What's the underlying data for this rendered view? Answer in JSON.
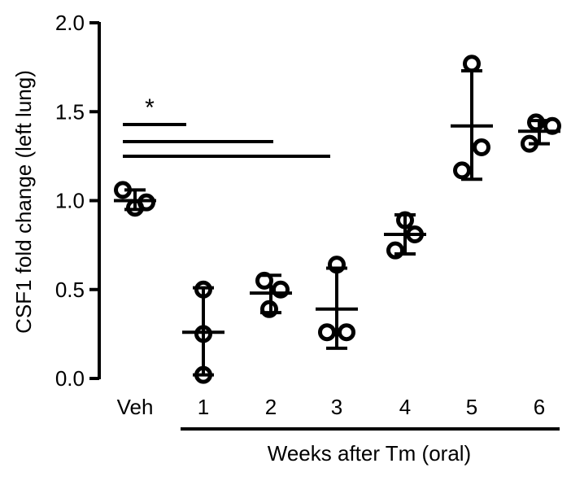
{
  "chart_data": {
    "type": "scatter",
    "ylabel": "CSF1 fold change (left lung)",
    "xlabel": "Weeks after Tm (oral)",
    "ylim": [
      0.0,
      2.0
    ],
    "yticks": [
      "0.0",
      "0.5",
      "1.0",
      "1.5",
      "2.0"
    ],
    "categories": [
      "Veh",
      "1",
      "2",
      "3",
      "4",
      "5",
      "6"
    ],
    "groups": [
      {
        "label": "Veh",
        "points": [
          1.06,
          0.96,
          0.99
        ],
        "mean": 1.0,
        "sd_upper": 1.06,
        "sd_lower": 0.95
      },
      {
        "label": "1",
        "points": [
          0.5,
          0.25,
          0.02
        ],
        "mean": 0.26,
        "sd_upper": 0.51,
        "sd_lower": 0.02
      },
      {
        "label": "2",
        "points": [
          0.55,
          0.5,
          0.39
        ],
        "mean": 0.48,
        "sd_upper": 0.58,
        "sd_lower": 0.37
      },
      {
        "label": "3",
        "points": [
          0.64,
          0.26,
          0.26
        ],
        "mean": 0.39,
        "sd_upper": 0.62,
        "sd_lower": 0.17
      },
      {
        "label": "4",
        "points": [
          0.89,
          0.81,
          0.72
        ],
        "mean": 0.81,
        "sd_upper": 0.92,
        "sd_lower": 0.7
      },
      {
        "label": "5",
        "points": [
          1.77,
          1.3,
          1.17
        ],
        "mean": 1.42,
        "sd_upper": 1.73,
        "sd_lower": 1.12
      },
      {
        "label": "6",
        "points": [
          1.44,
          1.42,
          1.32
        ],
        "mean": 1.39,
        "sd_upper": 1.45,
        "sd_lower": 1.32
      }
    ],
    "significance": {
      "label": "*",
      "comparisons": [
        {
          "from": "Veh",
          "to": "1"
        },
        {
          "from": "Veh",
          "to": "2"
        },
        {
          "from": "Veh",
          "to": "3"
        }
      ]
    },
    "grid": false,
    "marker": "open-circle",
    "error_bars": "mean ± SD"
  }
}
